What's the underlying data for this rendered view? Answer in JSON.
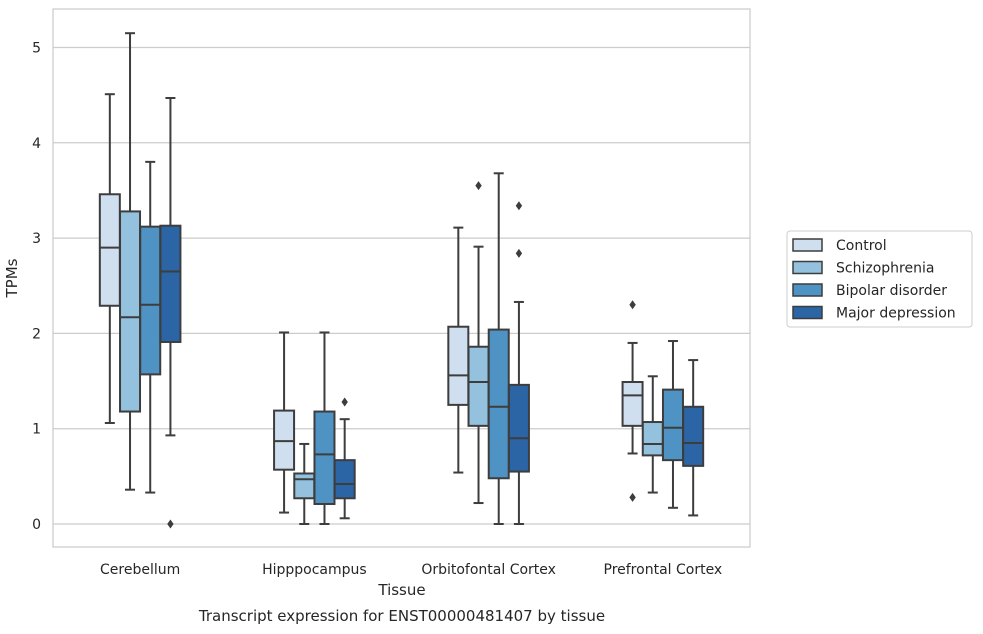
{
  "chart_data": {
    "type": "boxplot",
    "title": "",
    "caption": "Transcript expression for ENST00000481407 by tissue",
    "xlabel": "Tissue",
    "ylabel": "TPMs",
    "ylim": [
      -0.25,
      5.4
    ],
    "yticks": [
      0,
      1,
      2,
      3,
      4,
      5
    ],
    "grid": "horizontal",
    "legend_position": "right",
    "categories": [
      "Cerebellum",
      "Hipppocampus",
      "Orbitofontal Cortex",
      "Prefrontal Cortex"
    ],
    "series": [
      {
        "name": "Control",
        "color": "#cfdff0",
        "boxes": [
          {
            "whislo": 1.06,
            "q1": 2.29,
            "med": 2.9,
            "q3": 3.46,
            "whishi": 4.51,
            "fliers": []
          },
          {
            "whislo": 0.12,
            "q1": 0.57,
            "med": 0.87,
            "q3": 1.19,
            "whishi": 2.01,
            "fliers": []
          },
          {
            "whislo": 0.54,
            "q1": 1.25,
            "med": 1.56,
            "q3": 2.07,
            "whishi": 3.11,
            "fliers": []
          },
          {
            "whislo": 0.74,
            "q1": 1.03,
            "med": 1.35,
            "q3": 1.49,
            "whishi": 1.9,
            "fliers": [
              2.3,
              0.28
            ]
          }
        ]
      },
      {
        "name": "Schizophrenia",
        "color": "#94c2de",
        "boxes": [
          {
            "whislo": 0.36,
            "q1": 1.18,
            "med": 2.17,
            "q3": 3.28,
            "whishi": 5.15,
            "fliers": []
          },
          {
            "whislo": 0.0,
            "q1": 0.27,
            "med": 0.47,
            "q3": 0.53,
            "whishi": 0.84,
            "fliers": []
          },
          {
            "whislo": 0.22,
            "q1": 1.03,
            "med": 1.49,
            "q3": 1.86,
            "whishi": 2.91,
            "fliers": [
              3.55
            ]
          },
          {
            "whislo": 0.33,
            "q1": 0.72,
            "med": 0.84,
            "q3": 1.07,
            "whishi": 1.55,
            "fliers": []
          }
        ]
      },
      {
        "name": "Bipolar disorder",
        "color": "#4f93c5",
        "boxes": [
          {
            "whislo": 0.33,
            "q1": 1.57,
            "med": 2.3,
            "q3": 3.12,
            "whishi": 3.8,
            "fliers": []
          },
          {
            "whislo": 0.0,
            "q1": 0.21,
            "med": 0.73,
            "q3": 1.18,
            "whishi": 2.01,
            "fliers": []
          },
          {
            "whislo": 0.0,
            "q1": 0.48,
            "med": 1.23,
            "q3": 2.04,
            "whishi": 3.68,
            "fliers": []
          },
          {
            "whislo": 0.17,
            "q1": 0.67,
            "med": 1.01,
            "q3": 1.41,
            "whishi": 1.92,
            "fliers": []
          }
        ]
      },
      {
        "name": "Major depression",
        "color": "#2b65a6",
        "boxes": [
          {
            "whislo": 0.93,
            "q1": 1.91,
            "med": 2.65,
            "q3": 3.13,
            "whishi": 4.47,
            "fliers": [
              0.0
            ]
          },
          {
            "whislo": 0.06,
            "q1": 0.27,
            "med": 0.42,
            "q3": 0.67,
            "whishi": 1.1,
            "fliers": [
              1.28
            ]
          },
          {
            "whislo": 0.0,
            "q1": 0.55,
            "med": 0.9,
            "q3": 1.46,
            "whishi": 2.33,
            "fliers": [
              3.34,
              2.84
            ]
          },
          {
            "whislo": 0.09,
            "q1": 0.61,
            "med": 0.85,
            "q3": 1.23,
            "whishi": 1.72,
            "fliers": []
          }
        ]
      }
    ]
  }
}
